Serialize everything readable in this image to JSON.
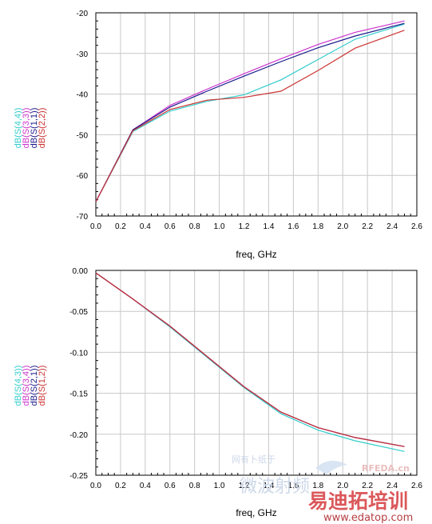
{
  "chart_data": [
    {
      "type": "line",
      "xlabel": "freq, GHz",
      "ylabel": "",
      "xlim": [
        0.0,
        2.6
      ],
      "ylim": [
        -70,
        -20
      ],
      "xticks": [
        0.0,
        0.2,
        0.4,
        0.6,
        0.8,
        1.0,
        1.2,
        1.4,
        1.6,
        1.8,
        2.0,
        2.2,
        2.4,
        2.6
      ],
      "xtick_labels": [
        "0.0",
        "0.2",
        "0.4",
        "0.6",
        "0.8",
        "1.0",
        "1.2",
        "1.4",
        "1.6",
        "1.8",
        "2.0",
        "2.2",
        "2.4",
        "2.6"
      ],
      "yticks": [
        -70,
        -60,
        -50,
        -40,
        -30,
        -20
      ],
      "ytick_labels": [
        "-70",
        "-60",
        "-50",
        "-40",
        "-30",
        "-20"
      ],
      "grid": true,
      "legend_position": "left-vertical",
      "series": [
        {
          "name": "dB(S(4,4))",
          "color": "#33cccc",
          "x": [
            0.0,
            0.3,
            0.6,
            0.9,
            1.2,
            1.5,
            1.8,
            2.1,
            2.5
          ],
          "y": [
            -66.5,
            -49.2,
            -44.2,
            -41.8,
            -40.2,
            -36.5,
            -31.5,
            -26.5,
            -22.8
          ]
        },
        {
          "name": "dB(S(3,3))",
          "color": "#cc33cc",
          "x": [
            0.0,
            0.3,
            0.6,
            0.9,
            1.2,
            1.5,
            1.8,
            2.1,
            2.5
          ],
          "y": [
            -66.5,
            -48.8,
            -42.8,
            -38.8,
            -35.0,
            -31.3,
            -27.8,
            -24.8,
            -22.0
          ]
        },
        {
          "name": "dB(S(1,1))",
          "color": "#1a1a8c",
          "x": [
            0.0,
            0.3,
            0.6,
            0.9,
            1.2,
            1.5,
            1.8,
            2.1,
            2.5
          ],
          "y": [
            -66.5,
            -48.8,
            -43.2,
            -39.3,
            -35.6,
            -32.0,
            -28.6,
            -25.7,
            -22.6
          ]
        },
        {
          "name": "dB(S(2,2))",
          "color": "#cc3333",
          "x": [
            0.0,
            0.3,
            0.6,
            0.9,
            1.2,
            1.5,
            1.8,
            2.1,
            2.5
          ],
          "y": [
            -66.5,
            -49.0,
            -43.8,
            -41.5,
            -40.8,
            -39.3,
            -34.2,
            -28.7,
            -24.3
          ]
        }
      ]
    },
    {
      "type": "line",
      "xlabel": "freq, GHz",
      "ylabel": "",
      "xlim": [
        0.0,
        2.6
      ],
      "ylim": [
        -0.25,
        0.0
      ],
      "xticks": [
        0.0,
        0.2,
        0.4,
        0.6,
        0.8,
        1.0,
        1.2,
        1.4,
        1.6,
        1.8,
        2.0,
        2.2,
        2.4,
        2.6
      ],
      "xtick_labels": [
        "0.0",
        "0.2",
        "0.4",
        "0.6",
        "0.8",
        "1.0",
        "1.2",
        "1.4",
        "1.6",
        "1.8",
        "2.0",
        "2.2",
        "2.4",
        "2.6"
      ],
      "yticks": [
        -0.25,
        -0.2,
        -0.15,
        -0.1,
        -0.05,
        0.0
      ],
      "ytick_labels": [
        "-0.25",
        "-0.20",
        "-0.15",
        "-0.10",
        "-0.05",
        "0.00"
      ],
      "grid": true,
      "legend_position": "left-vertical",
      "series": [
        {
          "name": "dB(S(4,3))",
          "color": "#33cccc",
          "x": [
            0.0,
            0.3,
            0.6,
            0.9,
            1.2,
            1.5,
            1.8,
            2.1,
            2.5
          ],
          "y": [
            -0.003,
            -0.035,
            -0.069,
            -0.106,
            -0.143,
            -0.175,
            -0.195,
            -0.208,
            -0.221
          ]
        },
        {
          "name": "dB(S(3,4))",
          "color": "#cc33cc",
          "x": [
            0.0,
            0.3,
            0.6,
            0.9,
            1.2,
            1.5,
            1.8,
            2.1,
            2.5
          ],
          "y": [
            -0.003,
            -0.035,
            -0.068,
            -0.105,
            -0.142,
            -0.173,
            -0.192,
            -0.204,
            -0.215
          ]
        },
        {
          "name": "dB(S(2,1))",
          "color": "#1a1a8c",
          "x": [
            0.0,
            0.3,
            0.6,
            0.9,
            1.2,
            1.5,
            1.8,
            2.1,
            2.5
          ],
          "y": [
            -0.003,
            -0.035,
            -0.068,
            -0.105,
            -0.142,
            -0.173,
            -0.192,
            -0.204,
            -0.215
          ]
        },
        {
          "name": "dB(S(1,2))",
          "color": "#cc3333",
          "x": [
            0.0,
            0.3,
            0.6,
            0.9,
            1.2,
            1.5,
            1.8,
            2.1,
            2.5
          ],
          "y": [
            -0.003,
            -0.035,
            -0.068,
            -0.105,
            -0.142,
            -0.173,
            -0.192,
            -0.204,
            -0.215
          ]
        }
      ]
    }
  ],
  "watermark": {
    "site_cn": "易迪拓培训",
    "site_url": "www.edatop.com",
    "brand": "RFEDA.cn",
    "faint_top": "网有卜纸于",
    "faint_bottom": "微波射频"
  }
}
